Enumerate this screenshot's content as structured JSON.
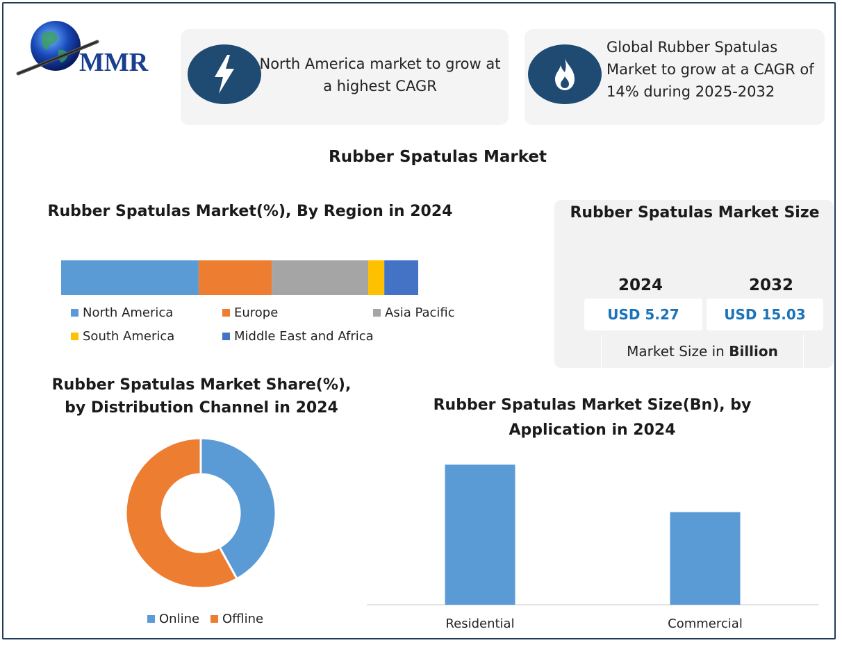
{
  "brand": {
    "logo_text": "MMR"
  },
  "header": {
    "box1": {
      "icon": "lightning-icon",
      "text_line1": "North America market to grow at",
      "text_line2": "a highest CAGR"
    },
    "box2": {
      "icon": "flame-icon",
      "text_line1": "Global Rubber Spatulas",
      "text_line2": "Market to grow at a CAGR of",
      "text_line3": "14% during 2025-2032"
    }
  },
  "main_title": "Rubber Spatulas Market",
  "market_size": {
    "title": "Rubber Spatulas Market Size",
    "year1": "2024",
    "year2": "2032",
    "value1": "USD 5.27",
    "value2": "USD 15.03",
    "note_prefix": "Market Size in ",
    "note_bold": "Billion"
  },
  "colors": {
    "blue": "#5b9bd5",
    "orange": "#ed7d31",
    "gray": "#a5a5a5",
    "yellow": "#ffc000",
    "dark_blue": "#4472c4",
    "navy": "#1f4a72",
    "value_blue": "#1a73b8"
  },
  "chart_data": [
    {
      "type": "bar",
      "orientation": "horizontal-stacked",
      "title": "Rubber Spatulas Market(%), By Region in 2024",
      "series": [
        {
          "name": "North America",
          "value": 38.5,
          "color": "#5b9bd5"
        },
        {
          "name": "Europe",
          "value": 20.5,
          "color": "#ed7d31"
        },
        {
          "name": "Asia Pacific",
          "value": 27.0,
          "color": "#a5a5a5"
        },
        {
          "name": "South America",
          "value": 4.5,
          "color": "#ffc000"
        },
        {
          "name": "Middle East and Africa",
          "value": 9.5,
          "color": "#4472c4"
        }
      ],
      "legend": "bottom"
    },
    {
      "type": "pie",
      "variant": "donut",
      "title_line1": "Rubber Spatulas Market Share(%),",
      "title_line2": "by Distribution Channel in 2024",
      "slices": [
        {
          "name": "Online",
          "value": 42,
          "color": "#5b9bd5"
        },
        {
          "name": "Offline",
          "value": 58,
          "color": "#ed7d31"
        }
      ],
      "legend": "bottom"
    },
    {
      "type": "bar",
      "title_line1": "Rubber Spatulas Market Size(Bn), by",
      "title_line2": "Application in 2024",
      "categories": [
        "Residential",
        "Commercial"
      ],
      "values": [
        3.07,
        2.03
      ],
      "ylim": [
        0,
        3.5
      ],
      "color": "#5b9bd5"
    }
  ]
}
